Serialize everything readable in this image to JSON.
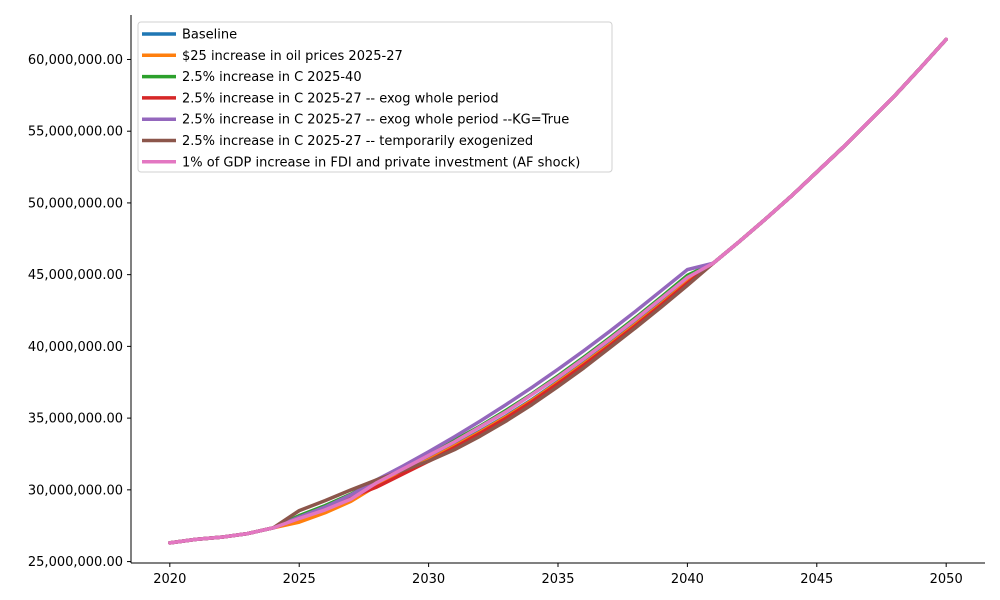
{
  "chart_data": {
    "type": "line",
    "title": "",
    "xlabel": "",
    "ylabel": "",
    "xlim": [
      2018.5,
      2051.5
    ],
    "ylim": [
      24900000,
      63100000
    ],
    "x_ticks": [
      2020,
      2025,
      2030,
      2035,
      2040,
      2045,
      2050
    ],
    "y_ticks": [
      25000000,
      30000000,
      35000000,
      40000000,
      45000000,
      50000000,
      55000000,
      60000000
    ],
    "y_tick_labels": [
      "25,000,000.00",
      "30,000,000.00",
      "35,000,000.00",
      "40,000,000.00",
      "45,000,000.00",
      "50,000,000.00",
      "55,000,000.00",
      "60,000,000.00"
    ],
    "grid": false,
    "legend_position": "top-left",
    "x": [
      2020,
      2021,
      2022,
      2023,
      2024,
      2025,
      2026,
      2027,
      2028,
      2029,
      2030,
      2031,
      2032,
      2033,
      2034,
      2035,
      2036,
      2037,
      2038,
      2039,
      2040,
      2041,
      2042,
      2043,
      2044,
      2045,
      2046,
      2047,
      2048,
      2049,
      2050
    ],
    "series": [
      {
        "name": "Baseline",
        "color": "#1f77b4",
        "values": [
          26300000,
          26550000,
          26700000,
          26950000,
          27350000,
          27900000,
          28500000,
          29300000,
          30500000,
          31300000,
          32150000,
          33100000,
          34100000,
          35150000,
          36300000,
          37550000,
          38850000,
          40200000,
          41600000,
          43050000,
          44550000,
          45800000,
          47300000,
          48850000,
          50450000,
          52150000,
          53850000,
          55650000,
          57450000,
          59400000,
          61400000
        ]
      },
      {
        "name": "$25 increase in oil prices 2025-27",
        "color": "#ff7f0e",
        "values": [
          26300000,
          26550000,
          26700000,
          26950000,
          27350000,
          27750000,
          28400000,
          29200000,
          30300000,
          31200000,
          32100000,
          33050000,
          34050000,
          35100000,
          36250000,
          37500000,
          38800000,
          40150000,
          41550000,
          43000000,
          44500000,
          45800000,
          47300000,
          48850000,
          50450000,
          52150000,
          53850000,
          55650000,
          57450000,
          59400000,
          61400000
        ]
      },
      {
        "name": "2.5% increase in C 2025-40",
        "color": "#2ca02c",
        "values": [
          26300000,
          26550000,
          26700000,
          26950000,
          27350000,
          28200000,
          28900000,
          29700000,
          30700000,
          31600000,
          32500000,
          33450000,
          34450000,
          35550000,
          36700000,
          37950000,
          39250000,
          40600000,
          42000000,
          43450000,
          44950000,
          45800000,
          47300000,
          48850000,
          50450000,
          52150000,
          53850000,
          55650000,
          57450000,
          59400000,
          61400000
        ]
      },
      {
        "name": "2.5% increase in C 2025-27 -- exog whole period",
        "color": "#d62728",
        "values": [
          26300000,
          26550000,
          26700000,
          26950000,
          27350000,
          28000000,
          28700000,
          29500000,
          30200000,
          31100000,
          32000000,
          32950000,
          33950000,
          35000000,
          36150000,
          37400000,
          38700000,
          40050000,
          41450000,
          42900000,
          44400000,
          45800000,
          47300000,
          48850000,
          50450000,
          52150000,
          53850000,
          55650000,
          57450000,
          59400000,
          61400000
        ]
      },
      {
        "name": "2.5% increase in C 2025-27 -- exog whole period --KG=True",
        "color": "#9467bd",
        "values": [
          26300000,
          26550000,
          26700000,
          26950000,
          27350000,
          28100000,
          28800000,
          29650000,
          30700000,
          31650000,
          32650000,
          33700000,
          34800000,
          35950000,
          37150000,
          38400000,
          39700000,
          41050000,
          42450000,
          43900000,
          45350000,
          45800000,
          47300000,
          48850000,
          50450000,
          52150000,
          53850000,
          55650000,
          57450000,
          59400000,
          61400000
        ]
      },
      {
        "name": "2.5% increase in C 2025-27 -- temporarily exogenized",
        "color": "#8c564b",
        "values": [
          26300000,
          26550000,
          26700000,
          26950000,
          27350000,
          28550000,
          29250000,
          30000000,
          30700000,
          31350000,
          32000000,
          32800000,
          33750000,
          34800000,
          35950000,
          37200000,
          38500000,
          39900000,
          41300000,
          42750000,
          44250000,
          45800000,
          47300000,
          48850000,
          50450000,
          52150000,
          53850000,
          55650000,
          57450000,
          59400000,
          61400000
        ]
      },
      {
        "name": "1% of GDP increase in FDI and private investment (AF shock)",
        "color": "#e377c2",
        "values": [
          26300000,
          26550000,
          26700000,
          26950000,
          27350000,
          28000000,
          28600000,
          29350000,
          30500000,
          31450000,
          32400000,
          33350000,
          34400000,
          35450000,
          36650000,
          37850000,
          39150000,
          40500000,
          41900000,
          43350000,
          44800000,
          45800000,
          47300000,
          48850000,
          50450000,
          52150000,
          53850000,
          55650000,
          57450000,
          59400000,
          61400000
        ]
      }
    ]
  }
}
